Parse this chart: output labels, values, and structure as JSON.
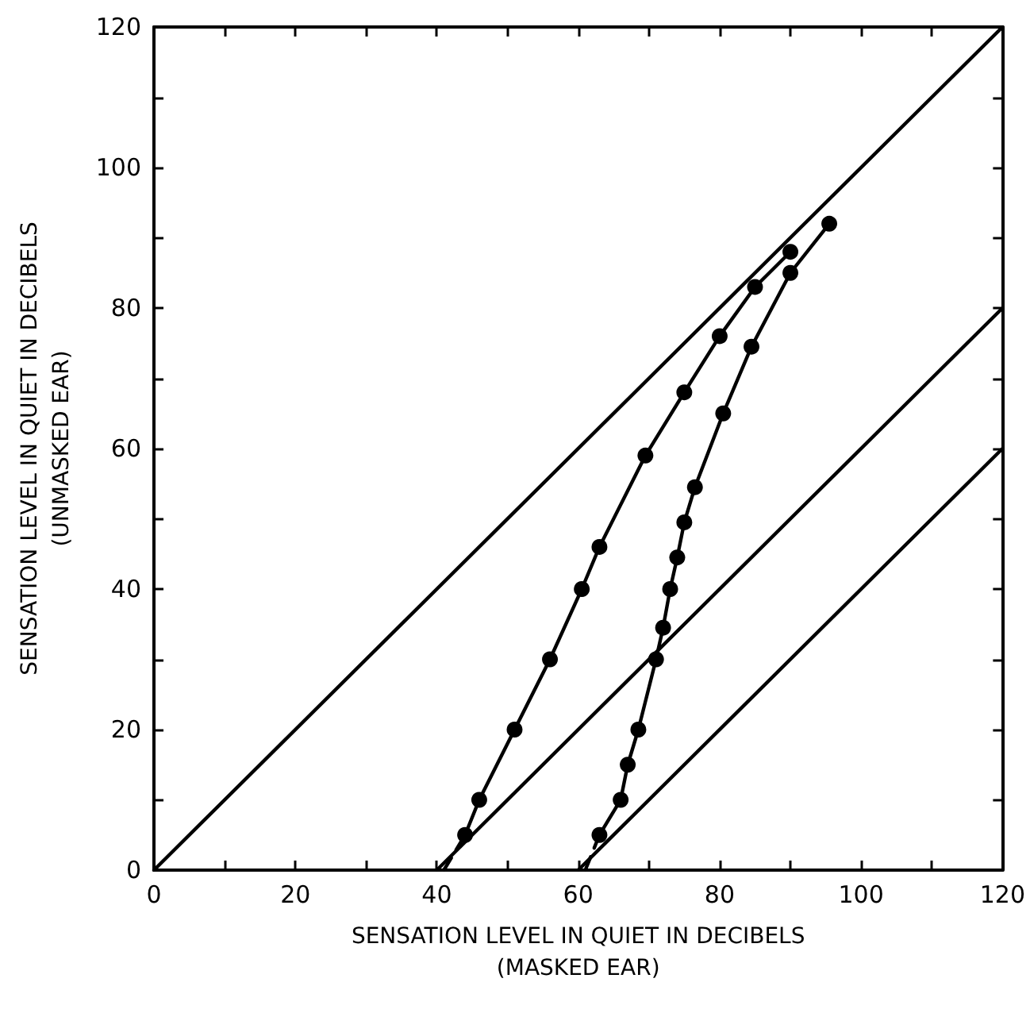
{
  "chart_data": {
    "type": "line",
    "xlabel": "SENSATION LEVEL IN QUIET IN DECIBELS\n(MASKED EAR)",
    "ylabel": "SENSATION LEVEL IN QUIET IN DECIBELS\n(UNMASKED EAR)",
    "xlim": [
      0,
      120
    ],
    "ylim": [
      0,
      120
    ],
    "xticks": [
      0,
      {
        "value": 10,
        "label": null
      },
      20,
      {
        "value": 30,
        "label": null
      },
      40,
      {
        "value": 50,
        "label": null
      },
      60,
      {
        "value": 70,
        "label": null
      },
      80,
      {
        "value": 90,
        "label": null
      },
      100,
      {
        "value": 110,
        "label": null
      },
      120
    ],
    "yticks": [
      0,
      {
        "value": 10,
        "label": null
      },
      20,
      {
        "value": 30,
        "label": null
      },
      40,
      {
        "value": 50,
        "label": null
      },
      60,
      {
        "value": 70,
        "label": null
      },
      80,
      {
        "value": 90,
        "label": null
      },
      100,
      {
        "value": 110,
        "label": null
      },
      120
    ],
    "grid": false,
    "series": [
      {
        "color": "#000000",
        "x": [
          0,
          120
        ],
        "values": [
          0,
          120
        ],
        "marker": "none",
        "line_style": "solid"
      },
      {
        "color": "#000000",
        "x": [
          40,
          120
        ],
        "values": [
          0,
          80
        ],
        "marker": "none",
        "line_style": "solid"
      },
      {
        "color": "#000000",
        "x": [
          60,
          120
        ],
        "values": [
          0,
          60
        ],
        "marker": "none",
        "line_style": "solid"
      },
      {
        "color": "#000000",
        "x": [
          41,
          44
        ],
        "values": [
          0,
          5
        ],
        "line_style": "dashed"
      },
      {
        "color": "#000000",
        "x": [
          61,
          63
        ],
        "values": [
          0,
          5
        ],
        "line_style": "dashed"
      },
      {
        "color": "#000000",
        "x": [
          44,
          46,
          51,
          56,
          60.5,
          63,
          69.5,
          75,
          80,
          85,
          90
        ],
        "values": [
          5,
          10,
          20,
          30,
          40,
          46,
          59,
          68,
          76,
          83,
          88
        ],
        "marker": "circle",
        "line_style": "solid"
      },
      {
        "color": "#000000",
        "x": [
          63,
          66,
          67,
          68.5,
          71,
          72,
          73,
          74,
          75,
          76.5,
          80.5,
          84.5,
          90,
          95.5
        ],
        "values": [
          5,
          10,
          15,
          20,
          30,
          34.5,
          40,
          44.5,
          49.5,
          54.5,
          65,
          74.5,
          85,
          92
        ],
        "marker": "circle",
        "line_style": "solid"
      }
    ]
  }
}
